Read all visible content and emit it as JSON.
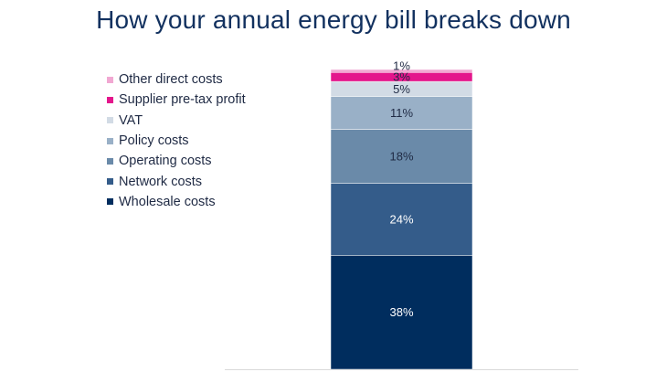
{
  "title": "How your annual energy bill breaks down",
  "chart_data": {
    "type": "bar",
    "stacked": true,
    "orientation": "vertical",
    "categories": [
      ""
    ],
    "series": [
      {
        "name": "Wholesale costs",
        "values": [
          38
        ],
        "label": "38%",
        "color": "#002d5e",
        "label_color": "#ffffff"
      },
      {
        "name": "Network costs",
        "values": [
          24
        ],
        "label": "24%",
        "color": "#345c8a",
        "label_color": "#ffffff"
      },
      {
        "name": "Operating costs",
        "values": [
          18
        ],
        "label": "18%",
        "color": "#6a8aa9",
        "label_color": "#1f2a44"
      },
      {
        "name": "Policy costs",
        "values": [
          11
        ],
        "label": "11%",
        "color": "#99b0c7",
        "label_color": "#1f2a44"
      },
      {
        "name": "VAT",
        "values": [
          5
        ],
        "label": "5%",
        "color": "#d2dbe5",
        "label_color": "#1f2a44"
      },
      {
        "name": "Supplier pre-tax profit",
        "values": [
          3
        ],
        "label": "3%",
        "color": "#e4168c",
        "label_color": "#1f2a44"
      },
      {
        "name": "Other direct costs",
        "values": [
          1
        ],
        "label": "1%",
        "color": "#f1a8d2",
        "label_color": "#1f2a44"
      }
    ],
    "ylim": [
      0,
      100
    ],
    "legend_position": "left",
    "grid": false
  }
}
